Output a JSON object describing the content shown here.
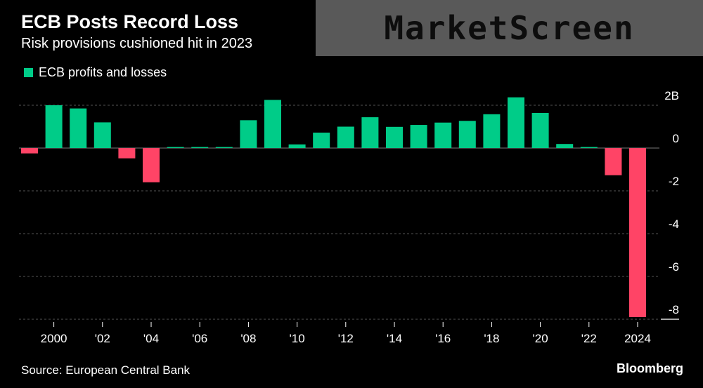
{
  "header": {
    "title": "ECB Posts Record Loss",
    "subtitle": "Risk provisions cushioned hit in 2023"
  },
  "watermark": {
    "text": "MarketScreen"
  },
  "footer": {
    "source": "Source: European Central Bank",
    "brand": "Bloomberg"
  },
  "colors": {
    "positive": "#00cc88",
    "negative": "#ff4466",
    "grid": "#555555",
    "background": "#000000"
  },
  "chart_data": {
    "type": "bar",
    "title": "ECB Posts Record Loss",
    "subtitle": "Risk provisions cushioned hit in 2023",
    "legend": [
      "ECB profits and losses"
    ],
    "legend_position": "top-left",
    "unit": "EUR billions",
    "x": [
      1999,
      2000,
      2001,
      2002,
      2003,
      2004,
      2005,
      2006,
      2007,
      2008,
      2009,
      2010,
      2011,
      2012,
      2013,
      2014,
      2015,
      2016,
      2017,
      2018,
      2019,
      2020,
      2021,
      2022,
      2023
    ],
    "values": [
      -0.25,
      2.0,
      1.85,
      1.2,
      -0.48,
      -1.6,
      0.0,
      0.0,
      0.0,
      1.3,
      2.25,
      0.17,
      0.72,
      1.0,
      1.44,
      0.99,
      1.08,
      1.19,
      1.27,
      1.58,
      2.37,
      1.64,
      0.19,
      0.0,
      -1.27
    ],
    "partial_last": {
      "x": 2024,
      "value": -7.9
    },
    "x_ticks": [
      "2000",
      "'02",
      "'04",
      "'06",
      "'08",
      "'10",
      "'12",
      "'14",
      "'16",
      "'18",
      "'20",
      "'22",
      "2024"
    ],
    "x_tick_years": [
      2000,
      2002,
      2004,
      2006,
      2008,
      2010,
      2012,
      2014,
      2016,
      2018,
      2020,
      2022,
      2024
    ],
    "y_ticks": [
      "2B",
      "0",
      "-2",
      "-4",
      "-6",
      "-8"
    ],
    "y_tick_values": [
      2,
      0,
      -2,
      -4,
      -6,
      -8
    ],
    "ylim": [
      -8,
      2
    ],
    "grid": true,
    "xlabel": "",
    "ylabel": ""
  }
}
